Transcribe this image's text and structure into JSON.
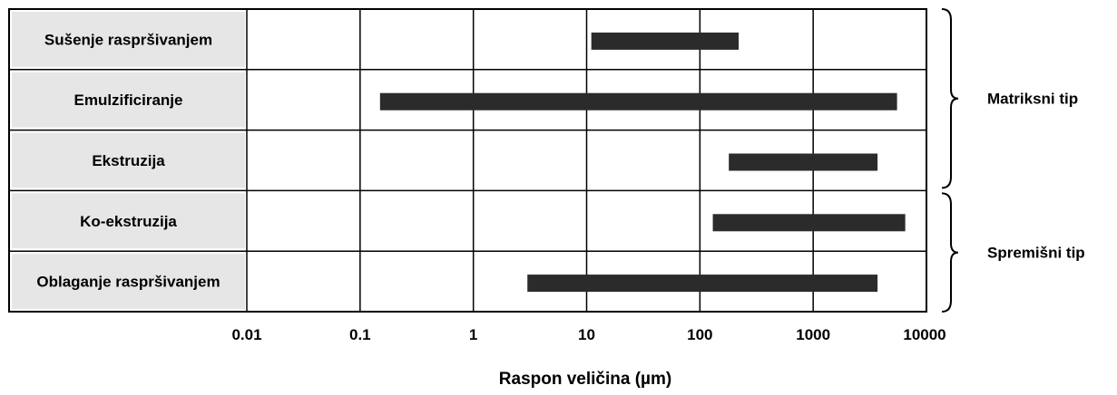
{
  "chart_data": {
    "type": "bar",
    "orientation": "horizontal",
    "categories": [
      "Sušenje raspršivanjem",
      "Emulzificiranje",
      "Ekstruzija",
      "Ko-ekstruzija",
      "Oblaganje raspršivanjem"
    ],
    "ranges": [
      [
        11,
        220
      ],
      [
        0.15,
        5500
      ],
      [
        180,
        3700
      ],
      [
        130,
        6500
      ],
      [
        3,
        3700
      ]
    ],
    "xscale": "log",
    "xlim": [
      0.01,
      10000
    ],
    "xticks": [
      "0.01",
      "0.1",
      "1",
      "10",
      "100",
      "1000",
      "10000"
    ],
    "xlabel": "Raspon veličina (µm)",
    "title": "",
    "groups": [
      {
        "label": "Matriksni tip",
        "categories": [
          "Sušenje raspršivanjem",
          "Emulzificiranje",
          "Ekstruzija"
        ]
      },
      {
        "label": "Spremišni tip",
        "categories": [
          "Ko-ekstruzija",
          "Oblaganje raspršivanjem"
        ]
      }
    ],
    "grid": true,
    "bar_color": "#2b2b2b",
    "label_bg_color": "#e6e6e6"
  }
}
